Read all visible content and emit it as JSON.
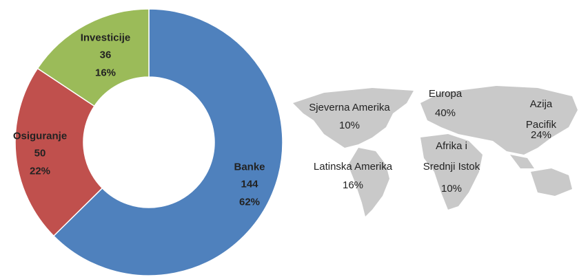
{
  "chart_data": {
    "type": "pie",
    "categories": [
      "Banke",
      "Osiguranje",
      "Investicije"
    ],
    "values": [
      144,
      50,
      36
    ],
    "percent_labels": [
      "62%",
      "22%",
      "16%"
    ],
    "colors": [
      "#4f81bd",
      "#c0504d",
      "#9bbb59"
    ]
  },
  "map": {
    "regions": [
      {
        "name": "Sjeverna Amerika",
        "value": 10,
        "value_label": "10%"
      },
      {
        "name": "Europa",
        "value": 40,
        "value_label": "40%"
      },
      {
        "name": "Azija Pacifik",
        "value": 24,
        "value_label": "24%"
      },
      {
        "name": "Afrika i\nSrednji Istok",
        "value": 10,
        "value_label": "10%"
      },
      {
        "name": "Latinska Amerika",
        "value": 16,
        "value_label": "16%"
      }
    ]
  }
}
